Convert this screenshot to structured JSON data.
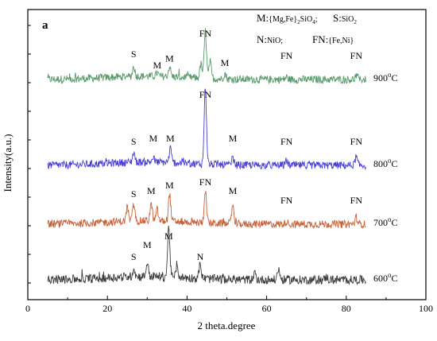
{
  "chart_data": {
    "type": "line",
    "panel_label": "a",
    "xlabel": "2 theta.degree",
    "ylabel": "Intensity(a.u.)",
    "xlim": [
      0,
      100
    ],
    "xticks": [
      0,
      20,
      40,
      60,
      80,
      100
    ],
    "xtick_labels": [
      "0",
      "20",
      "40",
      "60",
      "80",
      "100"
    ],
    "grid": false,
    "legend": [
      {
        "key": "M:",
        "formula": "{Mg,Fe}2SiO4;"
      },
      {
        "key": "S:",
        "formula": "SiO2"
      },
      {
        "key": "N:",
        "formula": "NiO;"
      },
      {
        "key": "FN:",
        "formula": "{Fe,Ni}"
      }
    ],
    "series": [
      {
        "name": "900°C",
        "temp": "900",
        "unit": "C",
        "color": "#5a9a6a",
        "x_range": [
          5,
          85
        ],
        "baseline": 1.0,
        "noise": 0.07,
        "peaks": [
          {
            "x": 26.6,
            "h": 0.18,
            "label": "S"
          },
          {
            "x": 32.5,
            "h": 0.06,
            "label": "M"
          },
          {
            "x": 35.6,
            "h": 0.18,
            "label": "M"
          },
          {
            "x": 43.5,
            "h": 0.25
          },
          {
            "x": 44.6,
            "h": 0.85,
            "label": "FN"
          },
          {
            "x": 45.8,
            "h": 0.3
          },
          {
            "x": 49.5,
            "h": 0.1,
            "label": "M"
          },
          {
            "x": 65.0,
            "h": 0.04,
            "label": "FN"
          },
          {
            "x": 82.5,
            "h": 0.06,
            "label": "FN"
          }
        ]
      },
      {
        "name": "800°C",
        "temp": "800",
        "unit": "C",
        "color": "#4a3fd8",
        "x_range": [
          5,
          85
        ],
        "baseline": 0.0,
        "noise": 0.07,
        "peaks": [
          {
            "x": 26.6,
            "h": 0.18,
            "label": "S"
          },
          {
            "x": 31.5,
            "h": 0.08,
            "label": "M"
          },
          {
            "x": 35.8,
            "h": 0.25,
            "label": "M"
          },
          {
            "x": 44.6,
            "h": 1.4,
            "label": "FN"
          },
          {
            "x": 51.5,
            "h": 0.12,
            "label": "M"
          },
          {
            "x": 65.0,
            "h": 0.08,
            "label": "FN"
          },
          {
            "x": 82.5,
            "h": 0.15,
            "label": "FN"
          }
        ]
      },
      {
        "name": "700°C",
        "temp": "700",
        "unit": "C",
        "color": "#c8613a",
        "x_range": [
          5,
          85
        ],
        "baseline": -1.0,
        "noise": 0.07,
        "peaks": [
          {
            "x": 25.0,
            "h": 0.25
          },
          {
            "x": 26.6,
            "h": 0.3,
            "label": "S"
          },
          {
            "x": 31.0,
            "h": 0.3,
            "label": "M"
          },
          {
            "x": 32.5,
            "h": 0.2
          },
          {
            "x": 35.6,
            "h": 0.5,
            "label": "M"
          },
          {
            "x": 44.6,
            "h": 0.6,
            "label": "FN"
          },
          {
            "x": 51.5,
            "h": 0.35,
            "label": "M"
          },
          {
            "x": 65.0,
            "h": 0.05,
            "label": "FN"
          },
          {
            "x": 82.5,
            "h": 0.12,
            "label": "FN"
          }
        ]
      },
      {
        "name": "600°C",
        "temp": "600",
        "unit": "C",
        "color": "#3c3c3c",
        "x_range": [
          5,
          85
        ],
        "baseline": -2.0,
        "noise": 0.08,
        "peaks": [
          {
            "x": 26.6,
            "h": 0.15,
            "label": "S"
          },
          {
            "x": 30.0,
            "h": 0.25,
            "label": "M"
          },
          {
            "x": 35.4,
            "h": 0.9,
            "label": "M"
          },
          {
            "x": 37.5,
            "h": 0.2
          },
          {
            "x": 43.3,
            "h": 0.25,
            "label": "N"
          },
          {
            "x": 57.0,
            "h": 0.12
          },
          {
            "x": 63.0,
            "h": 0.2
          },
          {
            "x": 75.0,
            "h": 0.05
          }
        ]
      }
    ]
  }
}
